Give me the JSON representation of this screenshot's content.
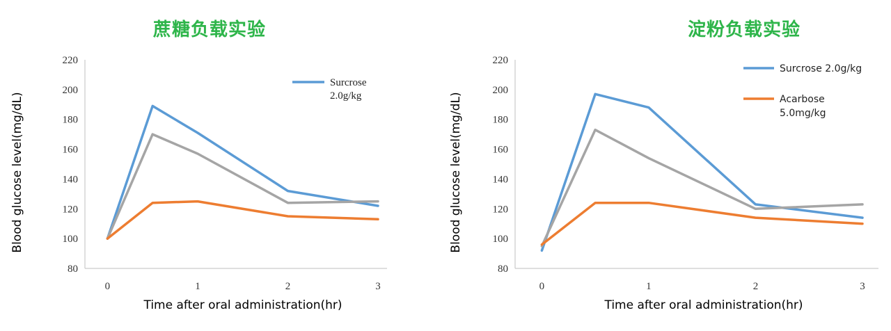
{
  "chart_data": [
    {
      "type": "line",
      "title": "蔗糖负载实验",
      "xlabel": "Time after oral administration(hr)",
      "ylabel": "Blood glucose level(mg/dL)",
      "ylim": [
        80,
        220
      ],
      "yticks": [
        80,
        100,
        120,
        140,
        160,
        180,
        200,
        220
      ],
      "xlim": [
        -0.25,
        3.1
      ],
      "xticks": [
        0,
        1,
        2,
        3
      ],
      "grid": false,
      "legend": {
        "position": "top-right",
        "entries": [
          {
            "series": 0,
            "lines": [
              "Surcrose",
              "2.0g/kg"
            ]
          }
        ]
      },
      "series": [
        {
          "name": "Surcrose 2.0g/kg",
          "color": "#5b9bd5",
          "x": [
            0,
            0.5,
            1,
            2,
            3
          ],
          "values": [
            100,
            189,
            171,
            132,
            122
          ]
        },
        {
          "name": "",
          "color": "#a5a5a5",
          "x": [
            0,
            0.5,
            1,
            2,
            3
          ],
          "values": [
            100,
            170,
            157,
            124,
            125
          ]
        },
        {
          "name": "",
          "color": "#ed7d31",
          "x": [
            0,
            0.5,
            1,
            2,
            3
          ],
          "values": [
            100,
            124,
            125,
            115,
            113
          ]
        }
      ]
    },
    {
      "type": "line",
      "title": "淀粉负载实验",
      "xlabel": "Time after oral administration(hr)",
      "ylabel": "Blood glucose level(mg/dL)",
      "ylim": [
        80,
        220
      ],
      "yticks": [
        80,
        100,
        120,
        140,
        160,
        180,
        200,
        220
      ],
      "xlim": [
        -0.25,
        3.15
      ],
      "xticks": [
        0,
        1,
        2,
        3
      ],
      "grid": false,
      "legend": {
        "position": "top-right",
        "entries": [
          {
            "series": 0,
            "lines": [
              "Surcrose 2.0g/kg"
            ]
          },
          {
            "series": 2,
            "lines": [
              "Acarbose",
              "5.0mg/kg"
            ]
          }
        ]
      },
      "series": [
        {
          "name": "Surcrose 2.0g/kg",
          "color": "#5b9bd5",
          "x": [
            0,
            0.5,
            1,
            2,
            3
          ],
          "values": [
            92,
            197,
            188,
            123,
            114
          ]
        },
        {
          "name": "",
          "color": "#a5a5a5",
          "x": [
            0,
            0.5,
            1,
            2,
            3
          ],
          "values": [
            95,
            173,
            154,
            120,
            123
          ]
        },
        {
          "name": "Acarbose 5.0mg/kg",
          "color": "#ed7d31",
          "x": [
            0,
            0.5,
            1,
            2,
            3
          ],
          "values": [
            96,
            124,
            124,
            114,
            110
          ]
        }
      ]
    }
  ]
}
